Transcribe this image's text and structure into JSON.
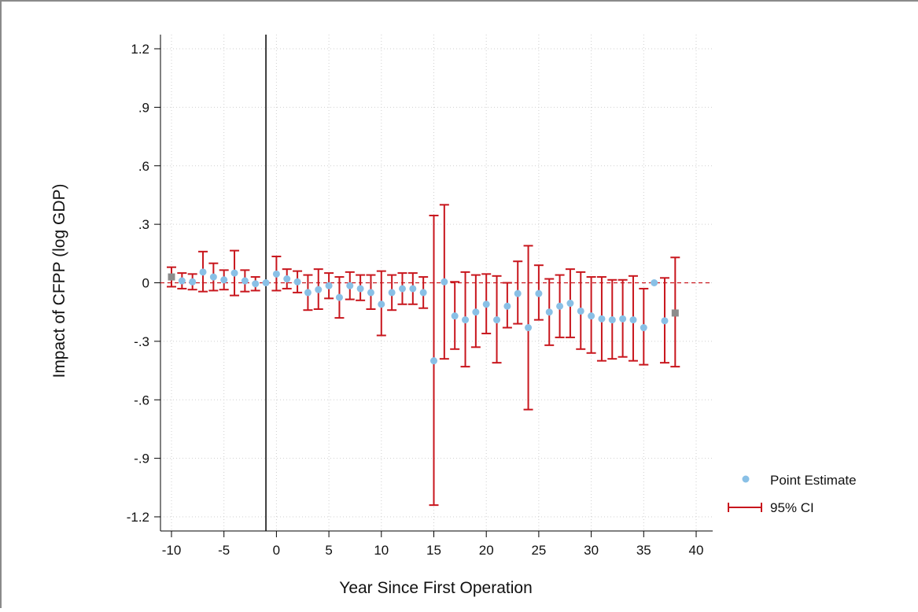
{
  "chart_data": {
    "type": "scatter",
    "xlabel": "Year Since First Operation",
    "ylabel": "Impact of CFPP (log GDP)",
    "xlim": [
      -10,
      40
    ],
    "ylim": [
      -1.2,
      1.2
    ],
    "x_ticks": [
      -10,
      -5,
      0,
      5,
      10,
      15,
      20,
      25,
      30,
      35,
      40
    ],
    "x_tick_labels": [
      "-10",
      "-5",
      "0",
      "5",
      "10",
      "15",
      "20",
      "25",
      "30",
      "35",
      "40"
    ],
    "y_ticks": [
      1.2,
      0.9,
      0.6,
      0.3,
      0,
      -0.3,
      -0.6,
      -0.9,
      -1.2
    ],
    "y_tick_labels": [
      "1.2",
      ".9",
      ".6",
      ".3",
      "0",
      "-.3",
      "-.6",
      "-.9",
      "-1.2"
    ],
    "grid": true,
    "reference_lines": {
      "vertical_x": -1,
      "horizontal_y": 0
    },
    "legend": {
      "position": "right",
      "entries": [
        "Point Estimate",
        "95% CI"
      ]
    },
    "series": [
      {
        "name": "Point Estimate",
        "color": "#89c0e6",
        "x": [
          -10,
          -9,
          -8,
          -7,
          -6,
          -5,
          -4,
          -3,
          -2,
          -1,
          0,
          1,
          2,
          3,
          4,
          5,
          6,
          7,
          8,
          9,
          10,
          11,
          12,
          13,
          14,
          15,
          16,
          17,
          18,
          19,
          20,
          21,
          22,
          23,
          24,
          25,
          26,
          27,
          28,
          29,
          30,
          31,
          32,
          33,
          34,
          35,
          36,
          37,
          38
        ],
        "y": [
          0.03,
          0.01,
          0.005,
          0.055,
          0.03,
          0.015,
          0.05,
          0.01,
          -0.005,
          0.0,
          0.045,
          0.02,
          0.005,
          -0.05,
          -0.035,
          -0.015,
          -0.075,
          -0.015,
          -0.03,
          -0.05,
          -0.11,
          -0.05,
          -0.03,
          -0.03,
          -0.05,
          -0.4,
          0.005,
          -0.17,
          -0.19,
          -0.15,
          -0.11,
          -0.19,
          -0.12,
          -0.055,
          -0.23,
          -0.055,
          -0.15,
          -0.12,
          -0.105,
          -0.145,
          -0.17,
          -0.185,
          -0.19,
          -0.185,
          -0.19,
          -0.23,
          0.0,
          -0.195,
          -0.155
        ]
      },
      {
        "name": "95% CI",
        "color": "#c8161d",
        "lower": [
          -0.02,
          -0.03,
          -0.035,
          -0.045,
          -0.04,
          -0.035,
          -0.065,
          -0.045,
          -0.04,
          0.0,
          -0.04,
          -0.03,
          -0.05,
          -0.14,
          -0.135,
          -0.08,
          -0.18,
          -0.085,
          -0.09,
          -0.135,
          -0.27,
          -0.14,
          -0.11,
          -0.11,
          -0.13,
          -1.14,
          -0.39,
          -0.34,
          -0.43,
          -0.33,
          -0.26,
          -0.41,
          -0.23,
          -0.21,
          -0.65,
          -0.19,
          -0.32,
          -0.28,
          -0.28,
          -0.34,
          -0.36,
          -0.4,
          -0.39,
          -0.38,
          -0.4,
          -0.42,
          0.0,
          -0.41,
          -0.43
        ],
        "upper": [
          0.08,
          0.05,
          0.045,
          0.16,
          0.1,
          0.065,
          0.165,
          0.065,
          0.03,
          0.0,
          0.135,
          0.07,
          0.06,
          0.04,
          0.07,
          0.05,
          0.03,
          0.055,
          0.04,
          0.04,
          0.06,
          0.04,
          0.05,
          0.05,
          0.03,
          0.345,
          0.4,
          0.005,
          0.055,
          0.04,
          0.045,
          0.035,
          0.0,
          0.11,
          0.19,
          0.09,
          0.02,
          0.04,
          0.07,
          0.055,
          0.03,
          0.03,
          0.015,
          0.015,
          0.035,
          -0.03,
          0.0,
          0.025,
          0.13
        ]
      }
    ],
    "marker_colors": {
      "estimate": "#89c0e6",
      "endpoint": "#8c8c8c",
      "ci": "#c8161d",
      "zero_line": "#c8161d",
      "vertical_line": "#000000"
    }
  }
}
